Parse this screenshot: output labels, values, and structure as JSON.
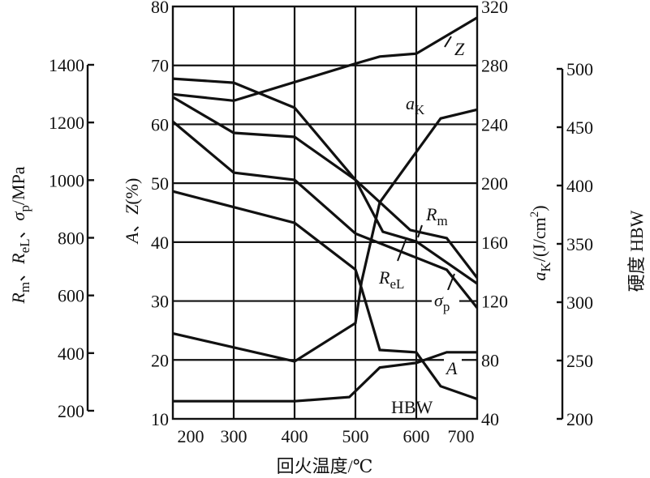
{
  "chart_data": {
    "type": "line",
    "title": "",
    "xlabel": "回火温度/℃",
    "xlim": [
      200,
      700
    ],
    "xticks": [
      200,
      300,
      400,
      500,
      600,
      700
    ],
    "grid": true,
    "axes": {
      "strength": {
        "label_parts": [
          {
            "t": "R",
            "i": true
          },
          {
            "t": "m",
            "sub": true
          },
          {
            "t": "、"
          },
          {
            "t": "R",
            "i": true
          },
          {
            "t": "eL",
            "sub": true
          },
          {
            "t": "、"
          },
          {
            "t": "σ",
            "i": true
          },
          {
            "t": "p",
            "sub": true
          },
          {
            "t": "/MPa"
          }
        ],
        "ylim": [
          200,
          1400
        ],
        "ticks": [
          200,
          400,
          600,
          800,
          1000,
          1200,
          1400
        ]
      },
      "az": {
        "label_parts": [
          {
            "t": "A",
            "i": true
          },
          {
            "t": "、"
          },
          {
            "t": "Z",
            "i": true
          },
          {
            "t": "(%)"
          }
        ],
        "ylim": [
          10,
          80
        ],
        "ticks": [
          10,
          20,
          30,
          40,
          50,
          60,
          70,
          80
        ]
      },
      "ak": {
        "label_parts": [
          {
            "t": "a",
            "i": true
          },
          {
            "t": "K",
            "sub": true
          },
          {
            "t": "/(J/cm"
          },
          {
            "t": "2",
            "sup": true
          },
          {
            "t": ")"
          }
        ],
        "ylim": [
          40,
          320
        ],
        "ticks": [
          40,
          80,
          120,
          160,
          200,
          240,
          280,
          320
        ]
      },
      "hbw": {
        "label_parts": [
          {
            "t": "硬度  HBW"
          }
        ],
        "ylim": [
          200,
          500
        ],
        "ticks": [
          200,
          250,
          300,
          350,
          400,
          450,
          500
        ]
      }
    },
    "series": [
      {
        "name": "Z",
        "axis": "az",
        "x": [
          200,
          300,
          500,
          540,
          600,
          700
        ],
        "y": [
          65.1,
          64.0,
          70.3,
          71.5,
          72.0,
          78.1
        ]
      },
      {
        "name": "Rm",
        "axis": "strength",
        "x": [
          200,
          300,
          400,
          500,
          590,
          650,
          700
        ],
        "y": [
          1352,
          1338,
          1251,
          1001,
          827,
          799,
          661
        ]
      },
      {
        "name": "ReL",
        "axis": "strength",
        "x": [
          200,
          300,
          400,
          500,
          545,
          600,
          700
        ],
        "y": [
          1288,
          1164,
          1150,
          1001,
          821,
          787,
          641
        ]
      },
      {
        "name": "σp",
        "axis": "strength",
        "x": [
          200,
          300,
          400,
          500,
          650,
          700
        ],
        "y": [
          1203,
          1026,
          1001,
          815,
          689,
          557
        ]
      },
      {
        "name": "aK",
        "axis": "ak",
        "x": [
          200,
          400,
          500,
          510,
          540,
          640,
          700
        ],
        "y": [
          98,
          79,
          105,
          133,
          187,
          244,
          250
        ]
      },
      {
        "name": "HBW",
        "axis": "hbw",
        "x": [
          200,
          400,
          500,
          510,
          540,
          600,
          640,
          700
        ],
        "y": [
          395,
          368,
          328,
          312,
          259,
          257,
          228,
          217
        ]
      },
      {
        "name": "A",
        "axis": "az",
        "x": [
          200,
          400,
          490,
          540,
          600,
          650,
          700
        ],
        "y": [
          13.0,
          13.0,
          13.7,
          18.7,
          19.5,
          21.3,
          21.3
        ]
      }
    ],
    "annotations": [
      {
        "series": "Z",
        "parts": [
          {
            "t": "Z",
            "i": true
          }
        ]
      },
      {
        "series": "aK",
        "parts": [
          {
            "t": "a",
            "i": true
          },
          {
            "t": "K",
            "sub": true
          }
        ]
      },
      {
        "series": "Rm",
        "parts": [
          {
            "t": "R",
            "i": true
          },
          {
            "t": "m",
            "sub": true
          }
        ]
      },
      {
        "series": "ReL",
        "parts": [
          {
            "t": "R",
            "i": true
          },
          {
            "t": "eL",
            "sub": true
          }
        ]
      },
      {
        "series": "σp",
        "parts": [
          {
            "t": "σ",
            "i": true
          },
          {
            "t": "p",
            "sub": true
          }
        ]
      },
      {
        "series": "A",
        "parts": [
          {
            "t": "A",
            "i": true
          }
        ]
      },
      {
        "series": "HBW",
        "parts": [
          {
            "t": "HBW"
          }
        ]
      }
    ]
  }
}
